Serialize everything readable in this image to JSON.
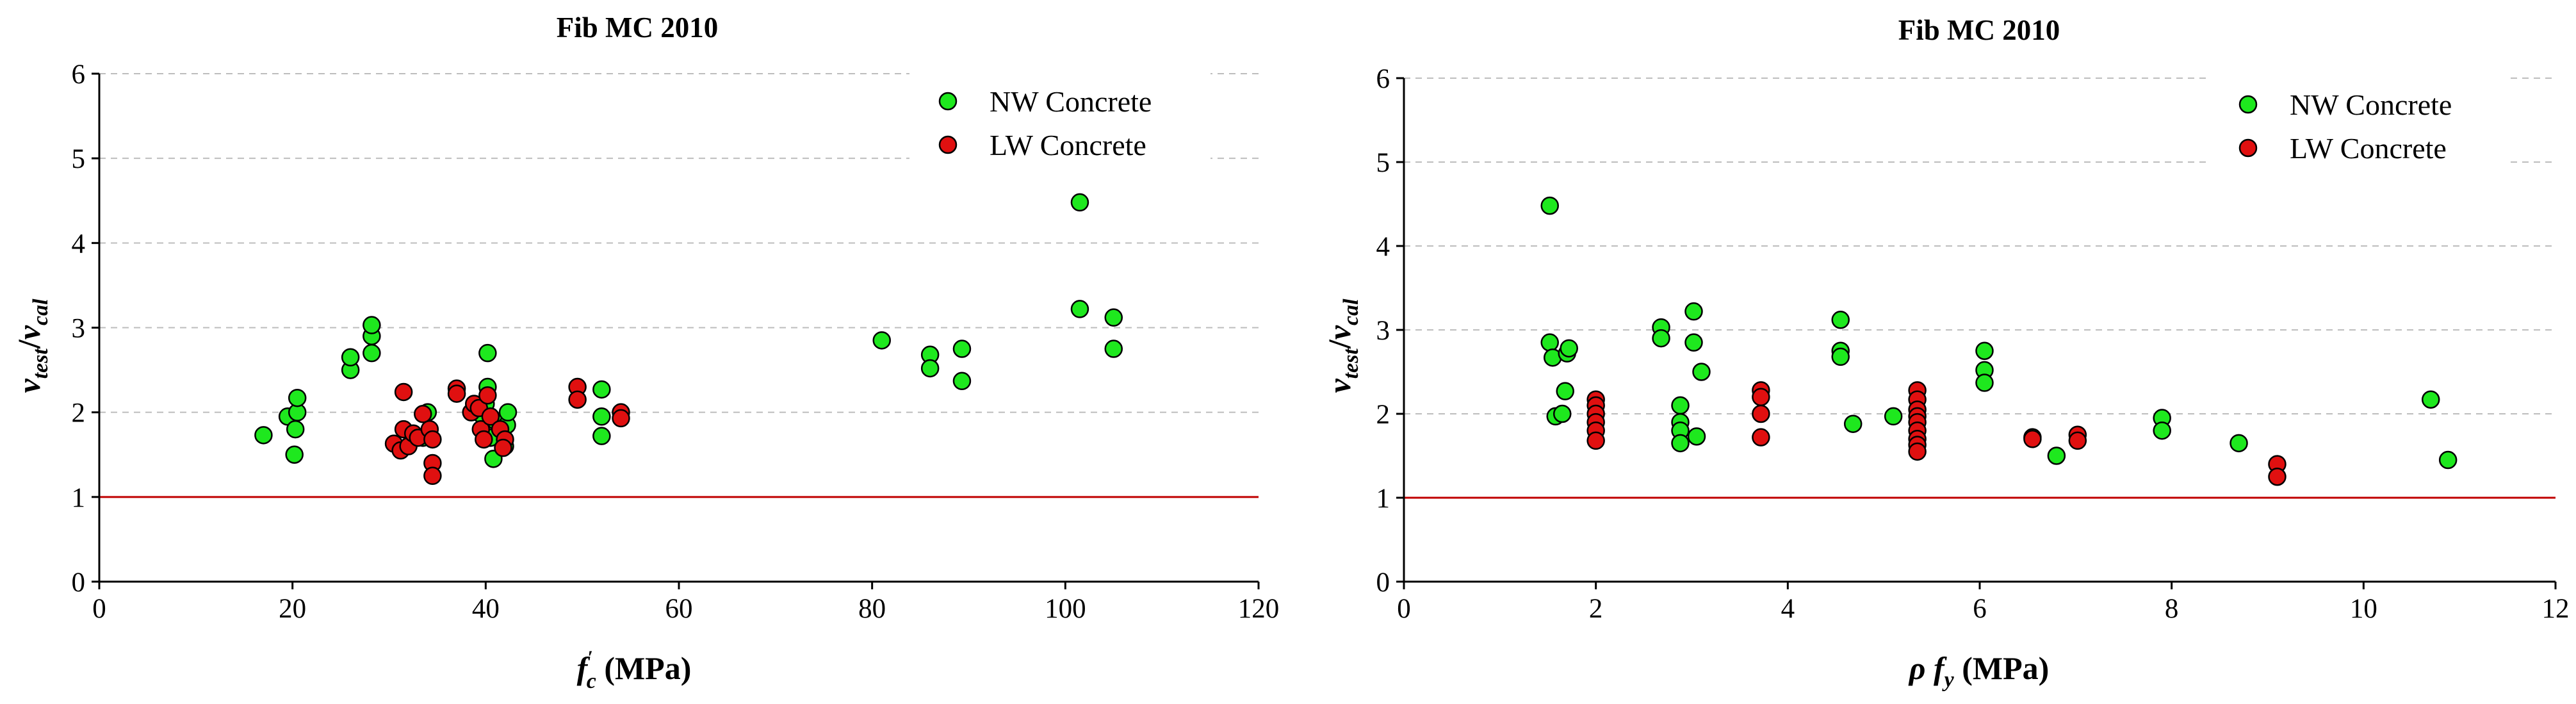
{
  "chart_data": [
    {
      "type": "scatter",
      "title": "Fib MC 2010",
      "xlabel": "fc' (MPa)",
      "xlabel_main": "f",
      "xlabel_sub": "c",
      "xlabel_sup": "′",
      "xlabel_unit": " (MPa)",
      "ylabel": "v_test/v_cal",
      "ylabel_parts": {
        "a": "v",
        "a_sub": "test",
        "slash": "/",
        "b": "v",
        "b_sub": "cal"
      },
      "xlim": [
        0,
        120
      ],
      "ylim": [
        0,
        6
      ],
      "xticks": [
        0,
        20,
        40,
        60,
        80,
        100,
        120
      ],
      "yticks": [
        0,
        1,
        2,
        3,
        4,
        5,
        6
      ],
      "reference_line": {
        "y": 1,
        "color": "#c00000"
      },
      "legend_position": "top-right",
      "series": [
        {
          "name": "NW Concrete",
          "color": "#1ee81e",
          "points": [
            [
              17,
              1.73
            ],
            [
              19.5,
              1.95
            ],
            [
              20.2,
              1.5
            ],
            [
              20.3,
              1.8
            ],
            [
              20.5,
              2.0
            ],
            [
              20.5,
              2.17
            ],
            [
              26,
              2.5
            ],
            [
              26,
              2.65
            ],
            [
              28.2,
              2.7
            ],
            [
              28.2,
              2.9
            ],
            [
              28.2,
              3.03
            ],
            [
              33.5,
              1.7
            ],
            [
              34,
              2.0
            ],
            [
              39.5,
              1.98
            ],
            [
              40,
              2.1
            ],
            [
              40.2,
              2.3
            ],
            [
              40.2,
              2.7
            ],
            [
              40.5,
              1.7
            ],
            [
              41,
              1.9
            ],
            [
              40.8,
              1.45
            ],
            [
              42,
              1.6
            ],
            [
              42.2,
              1.85
            ],
            [
              42.3,
              2.0
            ],
            [
              52,
              2.27
            ],
            [
              52,
              1.95
            ],
            [
              52,
              1.72
            ],
            [
              81,
              2.85
            ],
            [
              86,
              2.68
            ],
            [
              86,
              2.52
            ],
            [
              89.3,
              2.75
            ],
            [
              89.3,
              2.37
            ],
            [
              101.5,
              4.48
            ],
            [
              101.5,
              3.22
            ],
            [
              105,
              3.12
            ],
            [
              105,
              2.75
            ]
          ]
        },
        {
          "name": "LW Concrete",
          "color": "#e01010",
          "points": [
            [
              30.5,
              1.63
            ],
            [
              31.2,
              1.55
            ],
            [
              31.5,
              2.24
            ],
            [
              31.5,
              1.8
            ],
            [
              32,
              1.6
            ],
            [
              32.5,
              1.75
            ],
            [
              33,
              1.7
            ],
            [
              33.5,
              1.98
            ],
            [
              34.2,
              1.8
            ],
            [
              34.5,
              1.4
            ],
            [
              34.5,
              1.25
            ],
            [
              34.5,
              1.68
            ],
            [
              37,
              2.28
            ],
            [
              37,
              2.22
            ],
            [
              38.5,
              2.0
            ],
            [
              38.8,
              2.1
            ],
            [
              39.3,
              2.05
            ],
            [
              39.5,
              1.8
            ],
            [
              39.8,
              1.68
            ],
            [
              40.2,
              2.2
            ],
            [
              40.5,
              1.95
            ],
            [
              41.5,
              1.8
            ],
            [
              42,
              1.68
            ],
            [
              41.8,
              1.58
            ],
            [
              49.5,
              2.3
            ],
            [
              49.5,
              2.15
            ],
            [
              54,
              2.0
            ],
            [
              54,
              1.93
            ]
          ]
        }
      ]
    },
    {
      "type": "scatter",
      "title": "Fib MC 2010",
      "xlabel": "ρ fy (MPa)",
      "xlabel_main": "ρ f",
      "xlabel_sub": "y",
      "xlabel_sup": "",
      "xlabel_unit": " (MPa)",
      "ylabel": "v_test/v_cal",
      "ylabel_parts": {
        "a": "v",
        "a_sub": "test",
        "slash": "/",
        "b": "v",
        "b_sub": "cal"
      },
      "xlim": [
        0,
        12
      ],
      "ylim": [
        0,
        6
      ],
      "xticks": [
        0,
        2,
        4,
        6,
        8,
        10,
        12
      ],
      "yticks": [
        0,
        1,
        2,
        3,
        4,
        5,
        6
      ],
      "reference_line": {
        "y": 1,
        "color": "#c00000"
      },
      "legend_position": "top-right",
      "series": [
        {
          "name": "NW Concrete",
          "color": "#1ee81e",
          "points": [
            [
              1.52,
              4.48
            ],
            [
              1.52,
              2.85
            ],
            [
              1.55,
              2.67
            ],
            [
              1.58,
              1.97
            ],
            [
              1.65,
              2.0
            ],
            [
              1.68,
              2.27
            ],
            [
              1.7,
              2.72
            ],
            [
              1.72,
              2.78
            ],
            [
              2.68,
              3.03
            ],
            [
              2.68,
              2.9
            ],
            [
              2.88,
              2.1
            ],
            [
              2.88,
              1.9
            ],
            [
              2.88,
              1.8
            ],
            [
              2.88,
              1.65
            ],
            [
              3.02,
              3.22
            ],
            [
              3.02,
              2.85
            ],
            [
              3.05,
              1.73
            ],
            [
              3.1,
              2.5
            ],
            [
              4.55,
              3.12
            ],
            [
              4.55,
              2.75
            ],
            [
              4.55,
              2.68
            ],
            [
              4.68,
              1.88
            ],
            [
              5.1,
              1.97
            ],
            [
              6.05,
              2.75
            ],
            [
              6.05,
              2.52
            ],
            [
              6.05,
              2.37
            ],
            [
              6.55,
              1.72
            ],
            [
              6.8,
              1.5
            ],
            [
              7.9,
              1.95
            ],
            [
              7.9,
              1.8
            ],
            [
              8.7,
              1.65
            ],
            [
              10.7,
              2.17
            ],
            [
              10.88,
              1.45
            ]
          ]
        },
        {
          "name": "LW Concrete",
          "color": "#e01010",
          "points": [
            [
              2.0,
              2.17
            ],
            [
              2.0,
              2.1
            ],
            [
              2.0,
              2.0
            ],
            [
              2.0,
              1.9
            ],
            [
              2.0,
              1.8
            ],
            [
              2.0,
              1.68
            ],
            [
              3.72,
              2.28
            ],
            [
              3.72,
              2.2
            ],
            [
              3.72,
              2.0
            ],
            [
              3.72,
              1.72
            ],
            [
              5.35,
              2.28
            ],
            [
              5.35,
              2.17
            ],
            [
              5.35,
              2.05
            ],
            [
              5.35,
              1.97
            ],
            [
              5.35,
              1.9
            ],
            [
              5.35,
              1.8
            ],
            [
              5.35,
              1.7
            ],
            [
              5.35,
              1.63
            ],
            [
              5.35,
              1.55
            ],
            [
              6.55,
              1.7
            ],
            [
              7.02,
              1.75
            ],
            [
              7.02,
              1.68
            ],
            [
              9.1,
              1.4
            ],
            [
              9.1,
              1.25
            ]
          ]
        }
      ]
    }
  ]
}
